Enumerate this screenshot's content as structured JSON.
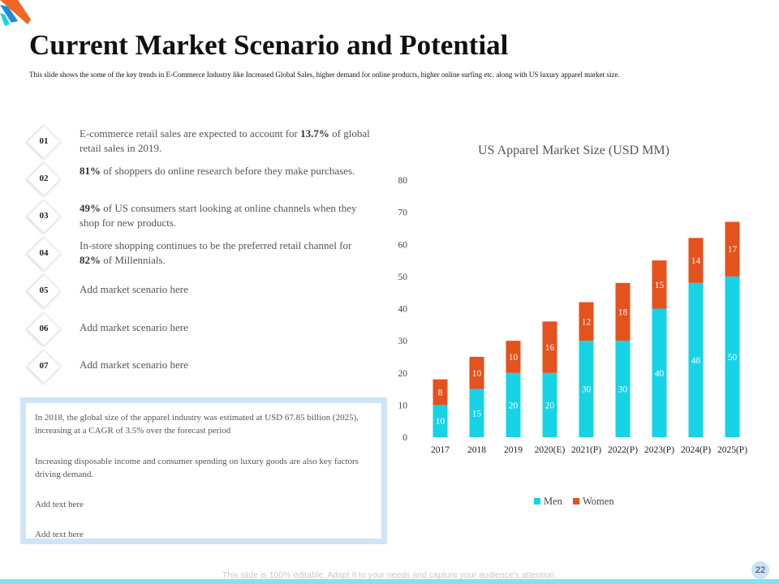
{
  "title": "Current Market Scenario and Potential",
  "subtitle": "This slide shows the some of the key trends in E-Commerce Industry like Increased Global Sales, higher demand for online products, higher online surfing etc. along with US luxury apparel market size.",
  "points": [
    {
      "num": "01",
      "pre": "E-commerce retail sales are expected to account for ",
      "bold": "13.7%",
      "post": " of global retail sales in 2019."
    },
    {
      "num": "02",
      "pre": "",
      "bold": "81%",
      "post": " of shoppers do online research before they make purchases."
    },
    {
      "num": "03",
      "pre": "",
      "bold": "49%",
      "post": " of US consumers start looking at online channels when they shop for new products."
    },
    {
      "num": "04",
      "pre": "In-store shopping continues to be the preferred retail channel for ",
      "bold": "82%",
      "post": " of Millennials."
    },
    {
      "num": "05",
      "pre": "Add market scenario here",
      "bold": "",
      "post": ""
    },
    {
      "num": "06",
      "pre": "Add market scenario here",
      "bold": "",
      "post": ""
    },
    {
      "num": "07",
      "pre": "Add market scenario here",
      "bold": "",
      "post": ""
    }
  ],
  "info_box": {
    "p1": "In 2018, the global size of the apparel industry was estimated at USD 67.85 billion (2025), increasing at a CAGR of 3.5% over the forecast period",
    "p2": "Increasing disposable income and consumer spending on luxury goods are also key factors driving demand.",
    "p3": "Add text here",
    "p4": "Add text here"
  },
  "colors": {
    "men": "#16d3e6",
    "women": "#e4521d",
    "accent_blue": "#1f8dd6",
    "accent_orange": "#f26522"
  },
  "chart_data": {
    "type": "bar",
    "stacked": true,
    "title": "US Apparel Market Size (USD MM)",
    "categories": [
      "2017",
      "2018",
      "2019",
      "2020(E)",
      "2021(P)",
      "2022(P)",
      "2023(P)",
      "2024(P)",
      "2025(P)"
    ],
    "series": [
      {
        "name": "Men",
        "values": [
          10,
          15,
          20,
          20,
          30,
          30,
          40,
          48,
          50
        ]
      },
      {
        "name": "Women",
        "values": [
          8,
          10,
          10,
          16,
          12,
          18,
          15,
          14,
          17
        ]
      }
    ],
    "ylim": [
      0,
      80
    ],
    "yticks": [
      0,
      10,
      20,
      30,
      40,
      50,
      60,
      70,
      80
    ],
    "grid": false,
    "legend": "bottom"
  },
  "footer": "This slide is 100% editable. Adapt it to your needs and capture your audience's attention.",
  "page_number": "22"
}
